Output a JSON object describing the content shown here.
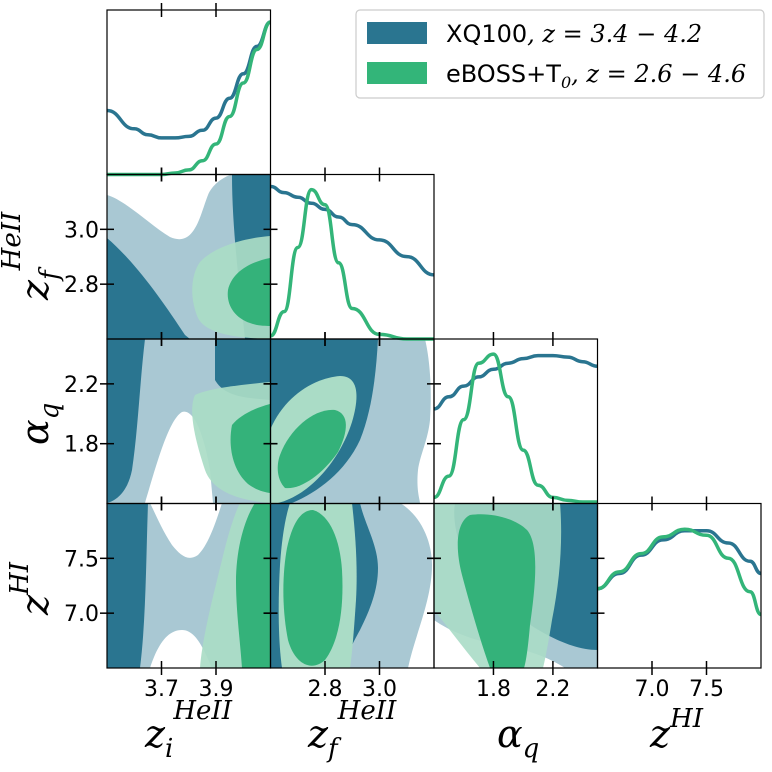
{
  "chart_data": {
    "type": "corner",
    "parameters": [
      {
        "symbol": "z",
        "sup": "HeII",
        "sub": "i",
        "ticks": [
          3.7,
          3.9
        ],
        "tick_labels": [
          "3.7",
          "3.9"
        ],
        "range": [
          3.5,
          4.1
        ]
      },
      {
        "symbol": "z",
        "sup": "HeII",
        "sub": "f",
        "ticks": [
          2.8,
          3.0
        ],
        "tick_labels": [
          "2.8",
          "3.0"
        ],
        "range": [
          2.6,
          3.2
        ]
      },
      {
        "symbol": "α",
        "sup": "",
        "sub": "q",
        "ticks": [
          1.8,
          2.2
        ],
        "tick_labels": [
          "1.8",
          "2.2"
        ],
        "range": [
          1.4,
          2.5
        ]
      },
      {
        "symbol": "z",
        "sup": "HI",
        "sub": "",
        "ticks": [
          7.0,
          7.5
        ],
        "tick_labels": [
          "7.0",
          "7.5"
        ],
        "range": [
          6.5,
          8.0
        ]
      }
    ],
    "series": [
      {
        "name": "XQ100",
        "name_math": ", z = 3.4 − 4.2",
        "color": "#2a7590",
        "inner_color": "#2a7590",
        "outer_color": "#a9c8d3"
      },
      {
        "name": "eBOSS+T",
        "name_sub": "0",
        "name_math": ", z = 2.6 − 4.6",
        "color": "#33b579",
        "inner_color": "#34b27a",
        "outer_color": "#aadcc6"
      }
    ],
    "marginals": [
      {
        "param": 0,
        "x": [
          3.5,
          3.6,
          3.65,
          3.7,
          3.75,
          3.8,
          3.85,
          3.9,
          3.95,
          4.0,
          4.05,
          4.1
        ],
        "XQ100": [
          0.42,
          0.3,
          0.26,
          0.24,
          0.24,
          0.25,
          0.29,
          0.37,
          0.5,
          0.66,
          0.84,
          1.0
        ],
        "eBOSS+T0": [
          0,
          0,
          0,
          0,
          0.01,
          0.03,
          0.09,
          0.2,
          0.38,
          0.6,
          0.82,
          1.0
        ]
      },
      {
        "param": 1,
        "x": [
          2.6,
          2.65,
          2.7,
          2.75,
          2.8,
          2.85,
          2.9,
          3.0,
          3.1,
          3.2
        ],
        "XQ100": [
          1.0,
          0.96,
          0.93,
          0.89,
          0.85,
          0.8,
          0.75,
          0.65,
          0.54,
          0.42
        ],
        "eBOSS+T0": [
          0.02,
          0.18,
          0.6,
          0.98,
          0.88,
          0.5,
          0.2,
          0.03,
          0,
          0
        ]
      },
      {
        "param": 2,
        "x": [
          1.4,
          1.5,
          1.6,
          1.7,
          1.8,
          1.9,
          2.0,
          2.1,
          2.2,
          2.3,
          2.4,
          2.5
        ],
        "XQ100": [
          0.62,
          0.7,
          0.77,
          0.83,
          0.88,
          0.92,
          0.95,
          0.97,
          0.97,
          0.96,
          0.93,
          0.9
        ],
        "eBOSS+T0": [
          0.04,
          0.18,
          0.55,
          0.92,
          0.98,
          0.7,
          0.35,
          0.12,
          0.04,
          0.02,
          0.01,
          0.01
        ]
      },
      {
        "param": 3,
        "x": [
          6.5,
          6.7,
          6.9,
          7.1,
          7.3,
          7.5,
          7.7,
          7.9,
          8.0
        ],
        "XQ100": [
          0.52,
          0.62,
          0.74,
          0.84,
          0.9,
          0.9,
          0.82,
          0.7,
          0.62
        ],
        "eBOSS+T0": [
          0.52,
          0.63,
          0.75,
          0.86,
          0.91,
          0.87,
          0.72,
          0.5,
          0.35
        ]
      }
    ],
    "grid": false,
    "legend_position": "top-right"
  }
}
